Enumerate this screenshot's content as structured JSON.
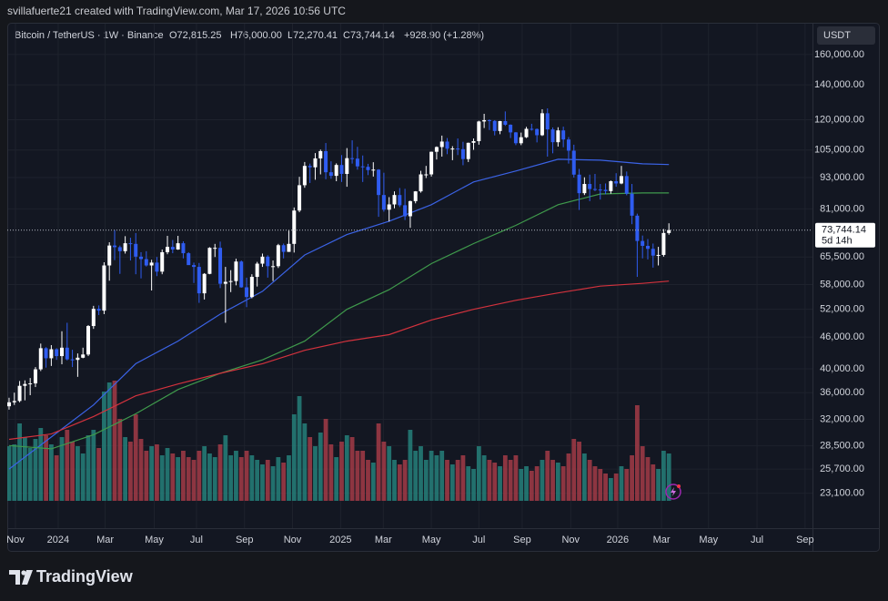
{
  "chart_data": {
    "type": "candlestick",
    "credit": "svillafuerte21 created with TradingView.com, Mar 17, 2026 10:56 UTC",
    "title": "Bitcoin / TetherUS · 1W · Binance",
    "ohlc_labels": [
      "O72,815.25",
      "H76,000.00",
      "L72,270.41",
      "C73,744.14"
    ],
    "change_label": "+928.90 (+1.28%)",
    "currency": "USDT",
    "brand": "TradingView",
    "countdown": "5d 14h",
    "last_price": {
      "value": 73744.14,
      "label": "73,744.14"
    },
    "log_scale": true,
    "grid": true,
    "up_color": "#ffffff",
    "down_color": "#2f5cf0",
    "ylim": [
      19800,
      184100
    ],
    "yticks": [
      {
        "value": 23100,
        "label": "23,100.00"
      },
      {
        "value": 25700,
        "label": "25,700.00"
      },
      {
        "value": 28500,
        "label": "28,500.00"
      },
      {
        "value": 32000,
        "label": "32,000.00"
      },
      {
        "value": 36000,
        "label": "36,000.00"
      },
      {
        "value": 40000,
        "label": "40,000.00"
      },
      {
        "value": 46000,
        "label": "46,000.00"
      },
      {
        "value": 52000,
        "label": "52,000.00"
      },
      {
        "value": 58000,
        "label": "58,000.00"
      },
      {
        "value": 65500,
        "label": "65,500.00"
      },
      {
        "value": 81000,
        "label": "81,000.00"
      },
      {
        "value": 93000,
        "label": "93,000.00"
      },
      {
        "value": 105000,
        "label": "105,000.00"
      },
      {
        "value": 120000,
        "label": "120,000.00"
      },
      {
        "value": 140000,
        "label": "140,000.00"
      },
      {
        "value": 160000,
        "label": "160,000.00"
      }
    ],
    "xlim": [
      -0.34,
      152.2
    ],
    "xticks": [
      {
        "value": 1.2,
        "label": "Nov"
      },
      {
        "value": 9.3,
        "label": "2024"
      },
      {
        "value": 18.2,
        "label": "Mar"
      },
      {
        "value": 27.5,
        "label": "May"
      },
      {
        "value": 35.5,
        "label": "Jul"
      },
      {
        "value": 44.6,
        "label": "Sep"
      },
      {
        "value": 53.7,
        "label": "Nov"
      },
      {
        "value": 62.8,
        "label": "2025"
      },
      {
        "value": 70.9,
        "label": "Mar"
      },
      {
        "value": 80.0,
        "label": "May"
      },
      {
        "value": 89.0,
        "label": "Jul"
      },
      {
        "value": 97.2,
        "label": "Sep"
      },
      {
        "value": 106.4,
        "label": "Nov"
      },
      {
        "value": 115.3,
        "label": "2026"
      },
      {
        "value": 123.6,
        "label": "Mar"
      },
      {
        "value": 132.5,
        "label": "May"
      },
      {
        "value": 141.7,
        "label": "Jul"
      },
      {
        "value": 150.8,
        "label": "Sep"
      }
    ],
    "candles": [
      [
        33900,
        35200,
        33400,
        34500
      ],
      [
        34500,
        36000,
        34100,
        34700
      ],
      [
        34700,
        37900,
        34500,
        37100
      ],
      [
        37100,
        38000,
        34800,
        37400
      ],
      [
        37400,
        38400,
        35600,
        37500
      ],
      [
        37500,
        40300,
        36900,
        39900
      ],
      [
        39900,
        44700,
        39600,
        43800
      ],
      [
        43800,
        44000,
        40200,
        41900
      ],
      [
        41900,
        44400,
        40500,
        43600
      ],
      [
        43600,
        43800,
        41600,
        42300
      ],
      [
        42300,
        47200,
        40800,
        43900
      ],
      [
        43900,
        49000,
        41500,
        41700
      ],
      [
        41700,
        43500,
        40300,
        41600
      ],
      [
        41600,
        42800,
        38600,
        42000
      ],
      [
        42000,
        43900,
        41900,
        42600
      ],
      [
        42600,
        48500,
        42300,
        48300
      ],
      [
        48300,
        52800,
        47700,
        52100
      ],
      [
        52100,
        52900,
        50700,
        51700
      ],
      [
        51700,
        64000,
        50900,
        63100
      ],
      [
        63100,
        69900,
        59000,
        68900
      ],
      [
        68900,
        73800,
        64600,
        68400
      ],
      [
        68400,
        68900,
        60800,
        67200
      ],
      [
        67200,
        71800,
        66500,
        69600
      ],
      [
        69600,
        71300,
        64500,
        69400
      ],
      [
        69400,
        72800,
        60700,
        65600
      ],
      [
        65600,
        66900,
        59600,
        64900
      ],
      [
        64900,
        67200,
        62800,
        63100
      ],
      [
        63100,
        64700,
        56500,
        63900
      ],
      [
        63900,
        65500,
        60200,
        61400
      ],
      [
        61400,
        67700,
        60700,
        66900
      ],
      [
        66900,
        71900,
        66300,
        68500
      ],
      [
        68500,
        70600,
        66600,
        67700
      ],
      [
        67700,
        71900,
        67600,
        69600
      ],
      [
        69600,
        70200,
        65100,
        66600
      ],
      [
        66600,
        66900,
        63400,
        63200
      ],
      [
        63200,
        63900,
        58400,
        62700
      ],
      [
        62700,
        63800,
        53500,
        55800
      ],
      [
        55800,
        61000,
        54300,
        60800
      ],
      [
        60800,
        68400,
        60700,
        68200
      ],
      [
        68200,
        69400,
        65500,
        68200
      ],
      [
        68200,
        70100,
        57100,
        58200
      ],
      [
        58200,
        62700,
        49000,
        58700
      ],
      [
        58700,
        61800,
        56100,
        58900
      ],
      [
        58900,
        65000,
        57800,
        64200
      ],
      [
        64200,
        64500,
        57200,
        57300
      ],
      [
        57300,
        59800,
        52500,
        54900
      ],
      [
        54900,
        60700,
        54600,
        60000
      ],
      [
        60000,
        64100,
        57500,
        63600
      ],
      [
        63600,
        66500,
        62700,
        65600
      ],
      [
        65600,
        66000,
        59800,
        62900
      ],
      [
        62900,
        64500,
        58900,
        62900
      ],
      [
        62900,
        69400,
        62400,
        69000
      ],
      [
        69000,
        69500,
        65100,
        67000
      ],
      [
        67000,
        73600,
        67000,
        69400
      ],
      [
        69400,
        81500,
        66800,
        80400
      ],
      [
        80400,
        93300,
        79800,
        89900
      ],
      [
        89900,
        99600,
        88900,
        97900
      ],
      [
        97900,
        98900,
        90800,
        97300
      ],
      [
        97300,
        103600,
        92100,
        101200
      ],
      [
        101200,
        105200,
        94300,
        104500
      ],
      [
        104500,
        108300,
        92300,
        95200
      ],
      [
        95200,
        99900,
        92500,
        93700
      ],
      [
        93700,
        99000,
        91500,
        98300
      ],
      [
        98300,
        102700,
        91200,
        94500
      ],
      [
        94500,
        105900,
        89300,
        101300
      ],
      [
        101300,
        109600,
        98900,
        101100
      ],
      [
        101100,
        106500,
        96300,
        97700
      ],
      [
        97700,
        102500,
        91200,
        97500
      ],
      [
        97500,
        98800,
        94000,
        96100
      ],
      [
        96100,
        99500,
        93400,
        96300
      ],
      [
        96300,
        96500,
        78200,
        86100
      ],
      [
        86100,
        95000,
        80000,
        80700
      ],
      [
        80700,
        85300,
        76600,
        82600
      ],
      [
        82600,
        87500,
        81200,
        86100
      ],
      [
        86100,
        88800,
        81600,
        82300
      ],
      [
        82300,
        88500,
        77100,
        78400
      ],
      [
        78400,
        84000,
        74500,
        83800
      ],
      [
        83800,
        87600,
        83000,
        87500
      ],
      [
        87500,
        95800,
        87000,
        94300
      ],
      [
        94300,
        97900,
        92800,
        94300
      ],
      [
        94300,
        104300,
        93400,
        104200
      ],
      [
        104200,
        106700,
        100700,
        106400
      ],
      [
        106400,
        111900,
        102000,
        109000
      ],
      [
        109000,
        110700,
        103100,
        105600
      ],
      [
        105600,
        106800,
        100400,
        105700
      ],
      [
        105700,
        110500,
        102700,
        105400
      ],
      [
        105400,
        108900,
        98200,
        100900
      ],
      [
        100900,
        108500,
        99600,
        108400
      ],
      [
        108400,
        110500,
        105100,
        109200
      ],
      [
        109200,
        119500,
        107500,
        119100
      ],
      [
        119100,
        123200,
        115700,
        119800
      ],
      [
        119800,
        120200,
        114700,
        119400
      ],
      [
        119400,
        119800,
        112000,
        114200
      ],
      [
        114200,
        119400,
        112600,
        119300
      ],
      [
        119300,
        124500,
        116800,
        117400
      ],
      [
        117400,
        117600,
        110700,
        113500
      ],
      [
        113500,
        113700,
        107300,
        108200
      ],
      [
        108200,
        113400,
        107300,
        111100
      ],
      [
        111100,
        116300,
        110700,
        115300
      ],
      [
        115300,
        117900,
        114400,
        115200
      ],
      [
        115200,
        115500,
        108600,
        112100
      ],
      [
        112100,
        125700,
        111700,
        123500
      ],
      [
        123500,
        126200,
        102000,
        115000
      ],
      [
        115000,
        116000,
        103500,
        108700
      ],
      [
        108700,
        116100,
        106600,
        114500
      ],
      [
        114500,
        116400,
        106300,
        110000
      ],
      [
        110000,
        111200,
        98900,
        104700
      ],
      [
        104700,
        107500,
        93000,
        94200
      ],
      [
        94200,
        96600,
        80600,
        86800
      ],
      [
        86800,
        93100,
        86100,
        90400
      ],
      [
        90400,
        94200,
        83800,
        88400
      ],
      [
        88400,
        94500,
        87600,
        88200
      ],
      [
        88200,
        90400,
        84400,
        88100
      ],
      [
        88100,
        90600,
        86400,
        87600
      ],
      [
        87600,
        91800,
        86600,
        91500
      ],
      [
        91500,
        94800,
        89300,
        90600
      ],
      [
        90600,
        97900,
        90300,
        93600
      ],
      [
        93600,
        95500,
        86000,
        86600
      ],
      [
        86600,
        90400,
        75700,
        78600
      ],
      [
        78600,
        79300,
        60000,
        70300
      ],
      [
        70300,
        72000,
        65100,
        68800
      ],
      [
        68800,
        70900,
        64800,
        67900
      ],
      [
        67900,
        69500,
        62500,
        65900
      ],
      [
        65900,
        68500,
        63100,
        66100
      ],
      [
        66100,
        74100,
        65600,
        72815.25
      ],
      [
        72815.25,
        76000,
        72270.41,
        73744.14
      ]
    ],
    "volume": {
      "up_color": "#26807a",
      "down_color": "#a33b47",
      "ylim": [
        0,
        525
      ],
      "values": [
        60,
        62,
        85,
        70,
        58,
        68,
        80,
        72,
        62,
        50,
        70,
        78,
        65,
        60,
        52,
        72,
        78,
        58,
        120,
        130,
        132,
        90,
        70,
        65,
        95,
        68,
        55,
        60,
        62,
        50,
        58,
        52,
        48,
        55,
        48,
        45,
        55,
        60,
        52,
        48,
        62,
        72,
        50,
        55,
        48,
        55,
        50,
        45,
        40,
        45,
        38,
        48,
        42,
        50,
        95,
        115,
        85,
        70,
        60,
        75,
        90,
        62,
        48,
        65,
        72,
        70,
        55,
        55,
        45,
        42,
        85,
        65,
        60,
        45,
        40,
        45,
        78,
        55,
        60,
        45,
        55,
        50,
        55,
        45,
        40,
        45,
        50,
        38,
        35,
        60,
        50,
        45,
        42,
        38,
        50,
        45,
        50,
        35,
        38,
        33,
        38,
        45,
        55,
        45,
        42,
        38,
        52,
        68,
        65,
        52,
        45,
        38,
        35,
        30,
        25,
        30,
        38,
        35,
        50,
        105,
        60,
        48,
        40,
        35,
        55,
        52
      ]
    },
    "moving_averages": [
      {
        "color": "#3b63e6",
        "x": [
          0,
          8,
          16,
          24,
          32,
          40,
          48,
          56,
          64,
          72,
          80,
          88,
          96,
          104,
          112,
          120,
          125
        ],
        "values": [
          25700,
          29600,
          34100,
          40900,
          45200,
          50900,
          56300,
          66100,
          72300,
          76700,
          82500,
          91200,
          95700,
          100800,
          100400,
          98800,
          98500
        ]
      },
      {
        "color": "#3f9a4c",
        "x": [
          0,
          8,
          16,
          24,
          32,
          40,
          48,
          56,
          64,
          72,
          80,
          88,
          96,
          104,
          112,
          120,
          125
        ],
        "values": [
          28500,
          28100,
          29900,
          32800,
          36500,
          39200,
          41600,
          45200,
          52000,
          56700,
          63600,
          69500,
          75300,
          82500,
          86500,
          86900,
          86900
        ]
      },
      {
        "color": "#d2323d",
        "x": [
          0,
          8,
          16,
          24,
          32,
          40,
          48,
          56,
          64,
          72,
          80,
          88,
          96,
          104,
          112,
          120,
          125
        ],
        "values": [
          29300,
          30000,
          32400,
          35500,
          37400,
          39200,
          40900,
          43400,
          45200,
          46500,
          49600,
          52000,
          54100,
          55900,
          57600,
          58300,
          58900
        ]
      }
    ]
  }
}
